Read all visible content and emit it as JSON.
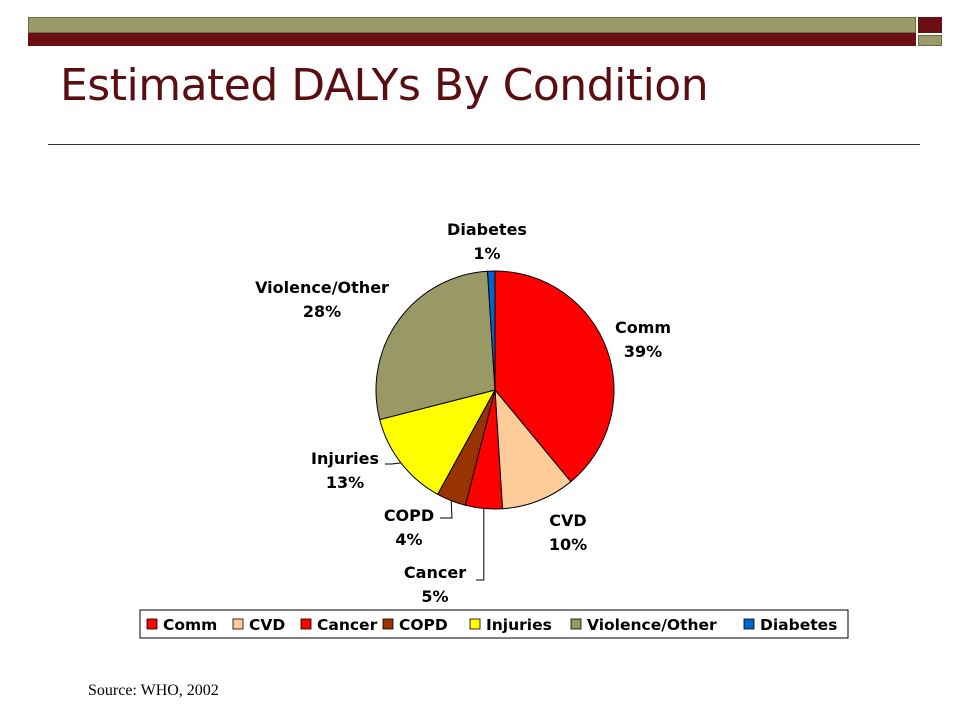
{
  "slide": {
    "title": "Estimated DALYs By Condition",
    "source": "Source:  WHO, 2002",
    "colors": {
      "maroon": "#6b0f12",
      "olive": "#9b9b6a"
    }
  },
  "chart_data": {
    "type": "pie",
    "title": "",
    "categories": [
      "Comm",
      "CVD",
      "Cancer",
      "COPD",
      "Injuries",
      "Violence/Other",
      "Diabetes"
    ],
    "values": [
      39,
      10,
      5,
      4,
      13,
      28,
      1
    ],
    "value_labels": [
      "39%",
      "10%",
      "5%",
      "4%",
      "13%",
      "28%",
      "1%"
    ],
    "colors": [
      "#ff0000",
      "#ffcc99",
      "#ff0000",
      "#993300",
      "#ffff00",
      "#999966",
      "#0066cc"
    ],
    "legend_position": "bottom",
    "start": "12 o'clock, clockwise"
  }
}
